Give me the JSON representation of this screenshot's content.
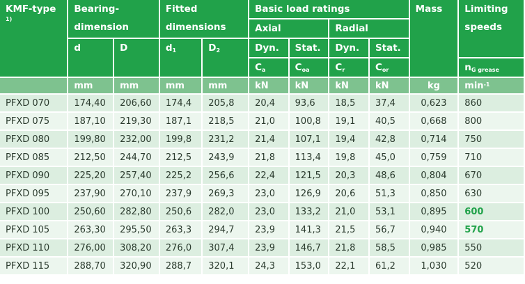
{
  "headers": {
    "kmf_type": "KMF-type",
    "kmf_type_sup": "1)",
    "bearing_dim": "Bearing-dimension",
    "fitted_dim": "Fitted dimensions",
    "basic_load": "Basic load ratings",
    "mass": "Mass",
    "limiting_speeds": "Limiting speeds",
    "axial": "Axial",
    "radial": "Radial",
    "d": "d",
    "D": "D",
    "d1": "d",
    "d1_sub": "1",
    "D2": "D",
    "D2_sub": "2",
    "dyn_axial": "Dyn.",
    "stat_axial": "Stat.",
    "dyn_radial": "Dyn.",
    "stat_radial": "Stat.",
    "ca": "C",
    "ca_sub": "a",
    "coa": "C",
    "coa_sub": "oa",
    "cr": "C",
    "cr_sub": "r",
    "cor": "C",
    "cor_sub": "or",
    "ng": "n",
    "ng_sub": "G grease"
  },
  "units": [
    "mm",
    "mm",
    "mm",
    "mm",
    "kN",
    "kN",
    "kN",
    "kN",
    "kg",
    "min"
  ],
  "units_min_sup": "-1",
  "rows": [
    {
      "type": "PFXD  070",
      "d": "174,40",
      "D": "206,60",
      "d1": "174,4",
      "D2": "205,8",
      "ca": "20,4",
      "coa": "93,6",
      "cr": "18,5",
      "cor": "37,4",
      "mass": "0,623",
      "speed": "860"
    },
    {
      "type": "PFXD  075",
      "d": "187,10",
      "D": "219,30",
      "d1": "187,1",
      "D2": "218,5",
      "ca": "21,0",
      "coa": "100,8",
      "cr": "19,1",
      "cor": "40,5",
      "mass": "0,668",
      "speed": "800"
    },
    {
      "type": "PFXD  080",
      "d": "199,80",
      "D": "232,00",
      "d1": "199,8",
      "D2": "231,2",
      "ca": "21,4",
      "coa": "107,1",
      "cr": "19,4",
      "cor": "42,8",
      "mass": "0,714",
      "speed": "750"
    },
    {
      "type": "PFXD  085",
      "d": "212,50",
      "D": "244,70",
      "d1": "212,5",
      "D2": "243,9",
      "ca": "21,8",
      "coa": "113,4",
      "cr": "19,8",
      "cor": "45,0",
      "mass": "0,759",
      "speed": "710"
    },
    {
      "type": "PFXD  090",
      "d": "225,20",
      "D": "257,40",
      "d1": "225,2",
      "D2": "256,6",
      "ca": "22,4",
      "coa": "121,5",
      "cr": "20,3",
      "cor": "48,6",
      "mass": "0,804",
      "speed": "670"
    },
    {
      "type": "PFXD  095",
      "d": "237,90",
      "D": "270,10",
      "d1": "237,9",
      "D2": "269,3",
      "ca": "23,0",
      "coa": "126,9",
      "cr": "20,6",
      "cor": "51,3",
      "mass": "0,850",
      "speed": "630"
    },
    {
      "type": "PFXD  100",
      "d": "250,60",
      "D": "282,80",
      "d1": "250,6",
      "D2": "282,0",
      "ca": "23,0",
      "coa": "133,2",
      "cr": "21,0",
      "cor": "53,1",
      "mass": "0,895",
      "speed": "600",
      "speed_bold": true
    },
    {
      "type": "PFXD  105",
      "d": "263,30",
      "D": "295,50",
      "d1": "263,3",
      "D2": "294,7",
      "ca": "23,9",
      "coa": "141,3",
      "cr": "21,5",
      "cor": "56,7",
      "mass": "0,940",
      "speed": "570",
      "speed_bold": true
    },
    {
      "type": "PFXD  110",
      "d": "276,00",
      "D": "308,20",
      "d1": "276,0",
      "D2": "307,4",
      "ca": "23,9",
      "coa": "146,7",
      "cr": "21,8",
      "cor": "58,5",
      "mass": "0,985",
      "speed": "550"
    },
    {
      "type": "PFXD  115",
      "d": "288,70",
      "D": "320,90",
      "d1": "288,7",
      "D2": "320,1",
      "ca": "24,3",
      "coa": "153,0",
      "cr": "22,1",
      "cor": "61,2",
      "mass": "1,030",
      "speed": "520"
    }
  ]
}
